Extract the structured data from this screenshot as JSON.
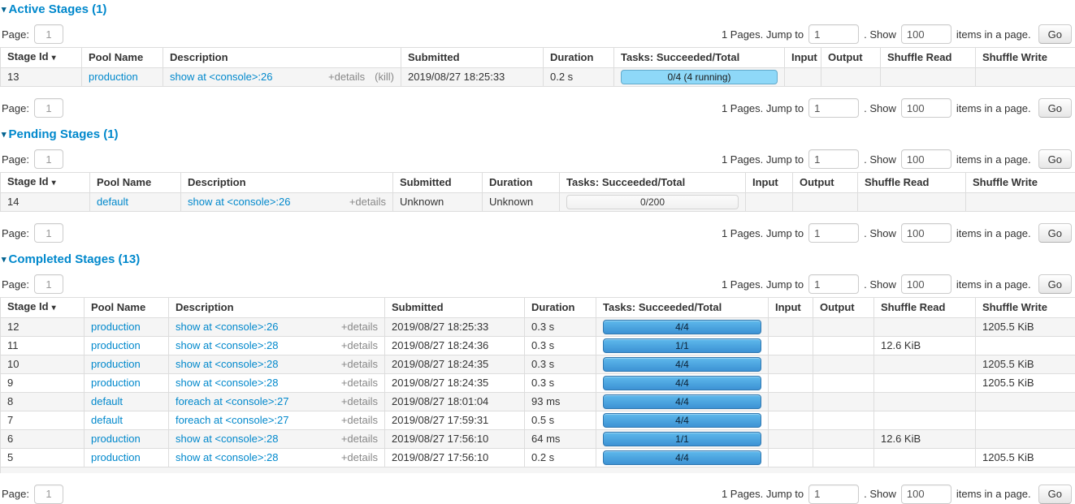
{
  "colors": {
    "heading": "#0088cc",
    "link": "#0088cc",
    "muted_link": "#888888",
    "running_bar": "#8ED8F8",
    "completed_bar_top": "#5eb9ec",
    "completed_bar_bottom": "#3d92d4"
  },
  "collapse_arrow": "▾",
  "sort_indicator": "▾",
  "pagination": {
    "page_label": "Page:",
    "page_value": "1",
    "pages_text": "1 Pages. Jump to",
    "jump_value": "1",
    "show_label": ". Show",
    "show_value": "100",
    "items_text": "items in a page.",
    "go_label": "Go"
  },
  "table_columns": [
    "Stage Id",
    "Pool Name",
    "Description",
    "Submitted",
    "Duration",
    "Tasks: Succeeded/Total",
    "Input",
    "Output",
    "Shuffle Read",
    "Shuffle Write"
  ],
  "sections": [
    {
      "title": "Active Stages (1)",
      "rows": [
        {
          "stage_id": "13",
          "pool": "production",
          "description": "show at <console>:26",
          "details": "+details",
          "kill": "(kill)",
          "submitted": "2019/08/27 18:25:33",
          "duration": "0.2 s",
          "tasks": "0/4 (4 running)",
          "progress": "running",
          "input": "",
          "output": "",
          "shuffle_read": "",
          "shuffle_write": ""
        }
      ],
      "partial_next_row": false
    },
    {
      "title": "Pending Stages (1)",
      "rows": [
        {
          "stage_id": "14",
          "pool": "default",
          "description": "show at <console>:26",
          "details": "+details",
          "kill": "",
          "submitted": "Unknown",
          "duration": "Unknown",
          "tasks": "0/200",
          "progress": "empty",
          "input": "",
          "output": "",
          "shuffle_read": "",
          "shuffle_write": ""
        }
      ],
      "partial_next_row": false
    },
    {
      "title": "Completed Stages (13)",
      "rows": [
        {
          "stage_id": "12",
          "pool": "production",
          "description": "show at <console>:26",
          "details": "+details",
          "kill": "",
          "submitted": "2019/08/27 18:25:33",
          "duration": "0.3 s",
          "tasks": "4/4",
          "progress": "completed",
          "input": "",
          "output": "",
          "shuffle_read": "",
          "shuffle_write": "1205.5 KiB"
        },
        {
          "stage_id": "11",
          "pool": "production",
          "description": "show at <console>:28",
          "details": "+details",
          "kill": "",
          "submitted": "2019/08/27 18:24:36",
          "duration": "0.3 s",
          "tasks": "1/1",
          "progress": "completed",
          "input": "",
          "output": "",
          "shuffle_read": "12.6 KiB",
          "shuffle_write": ""
        },
        {
          "stage_id": "10",
          "pool": "production",
          "description": "show at <console>:28",
          "details": "+details",
          "kill": "",
          "submitted": "2019/08/27 18:24:35",
          "duration": "0.3 s",
          "tasks": "4/4",
          "progress": "completed",
          "input": "",
          "output": "",
          "shuffle_read": "",
          "shuffle_write": "1205.5 KiB"
        },
        {
          "stage_id": "9",
          "pool": "production",
          "description": "show at <console>:28",
          "details": "+details",
          "kill": "",
          "submitted": "2019/08/27 18:24:35",
          "duration": "0.3 s",
          "tasks": "4/4",
          "progress": "completed",
          "input": "",
          "output": "",
          "shuffle_read": "",
          "shuffle_write": "1205.5 KiB"
        },
        {
          "stage_id": "8",
          "pool": "default",
          "description": "foreach at <console>:27",
          "details": "+details",
          "kill": "",
          "submitted": "2019/08/27 18:01:04",
          "duration": "93 ms",
          "tasks": "4/4",
          "progress": "completed",
          "input": "",
          "output": "",
          "shuffle_read": "",
          "shuffle_write": ""
        },
        {
          "stage_id": "7",
          "pool": "default",
          "description": "foreach at <console>:27",
          "details": "+details",
          "kill": "",
          "submitted": "2019/08/27 17:59:31",
          "duration": "0.5 s",
          "tasks": "4/4",
          "progress": "completed",
          "input": "",
          "output": "",
          "shuffle_read": "",
          "shuffle_write": ""
        },
        {
          "stage_id": "6",
          "pool": "production",
          "description": "show at <console>:28",
          "details": "+details",
          "kill": "",
          "submitted": "2019/08/27 17:56:10",
          "duration": "64 ms",
          "tasks": "1/1",
          "progress": "completed",
          "input": "",
          "output": "",
          "shuffle_read": "12.6 KiB",
          "shuffle_write": ""
        },
        {
          "stage_id": "5",
          "pool": "production",
          "description": "show at <console>:28",
          "details": "+details",
          "kill": "",
          "submitted": "2019/08/27 17:56:10",
          "duration": "0.2 s",
          "tasks": "4/4",
          "progress": "completed",
          "input": "",
          "output": "",
          "shuffle_read": "",
          "shuffle_write": "1205.5 KiB"
        }
      ],
      "partial_next_row": true
    }
  ]
}
